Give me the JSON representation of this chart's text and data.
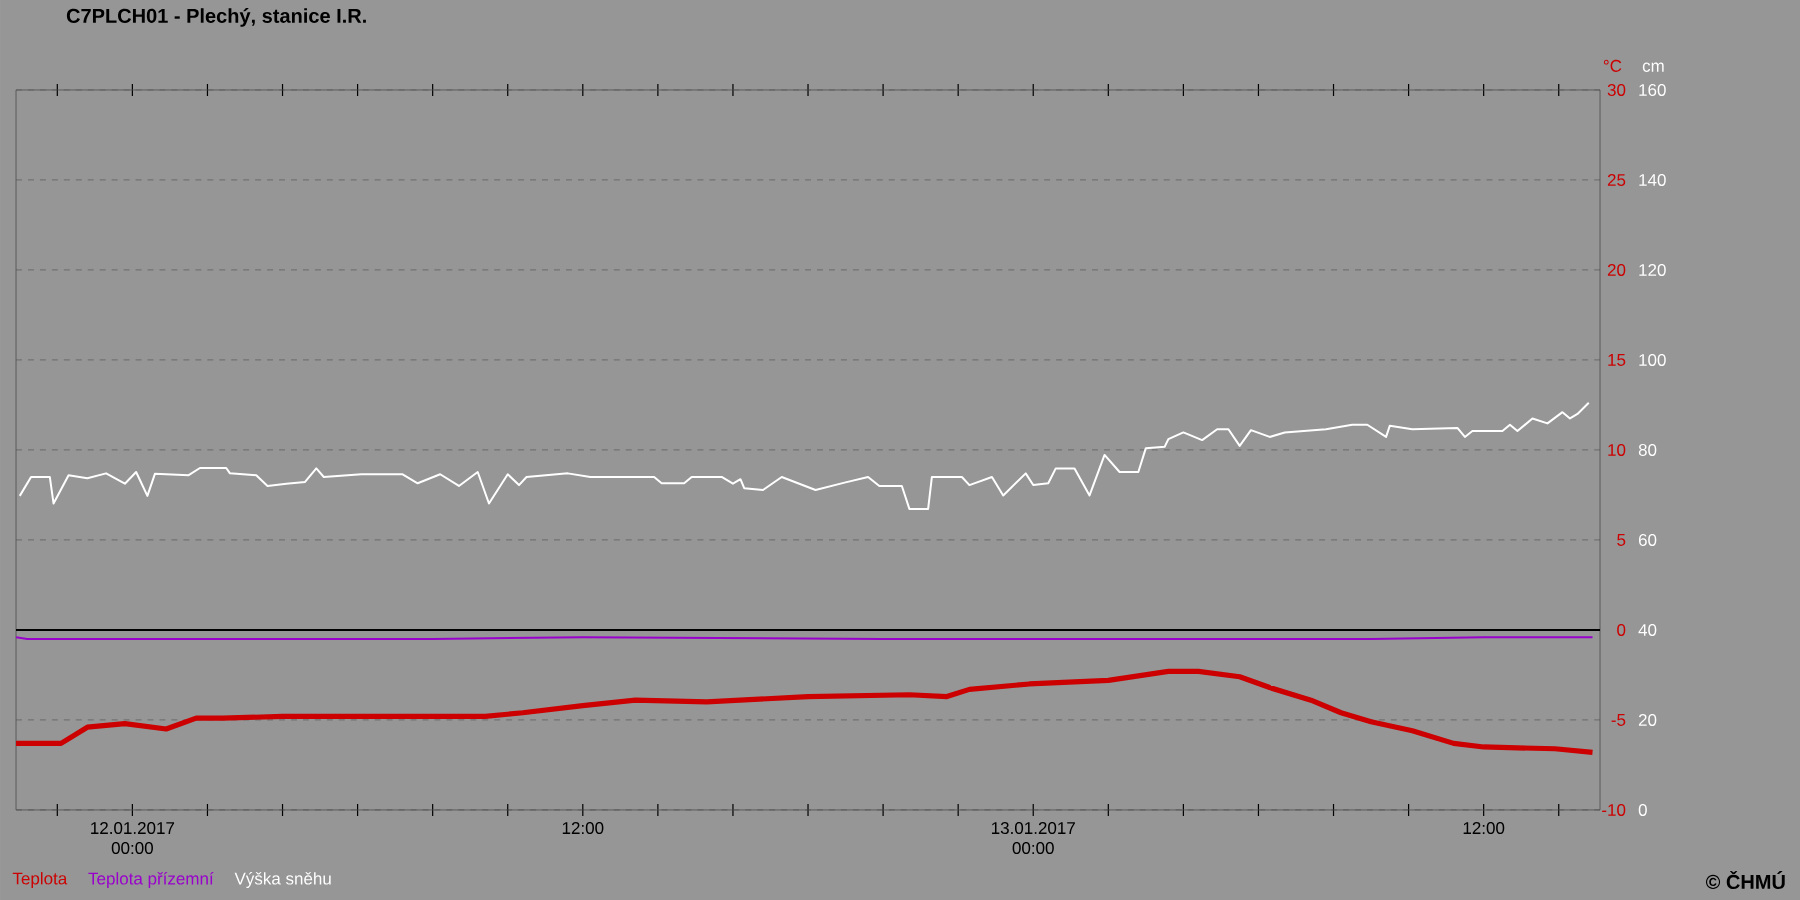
{
  "chart_data": {
    "type": "line",
    "title": "C7PLCH01 - Plechý, stanice I.R.",
    "ylabel": "°C",
    "y2label": "cm",
    "series": [
      {
        "name": "Teplota",
        "color": "#cc0000",
        "x": [
          "2017-01-11T20:54",
          "2017-01-11T22:06",
          "2017-01-11T22:48",
          "2017-01-11T23:48",
          "2017-01-12T00:54",
          "2017-01-12T01:42",
          "2017-01-12T02:24",
          "2017-01-12T04:00",
          "2017-01-12T05:36",
          "2017-01-12T06:42",
          "2017-01-12T08:00",
          "2017-01-12T09:24",
          "2017-01-12T10:24",
          "2017-01-12T12:00",
          "2017-01-12T13:24",
          "2017-01-12T15:18",
          "2017-01-12T18:00",
          "2017-01-12T20:42",
          "2017-01-12T21:42",
          "2017-01-12T22:18",
          "2017-01-12T23:54",
          "2017-01-13T02:00",
          "2017-01-13T03:36",
          "2017-01-13T04:24",
          "2017-01-13T05:30",
          "2017-01-13T06:18",
          "2017-01-13T07:24",
          "2017-01-13T08:12",
          "2017-01-13T09:00",
          "2017-01-13T10:06",
          "2017-01-13T11:12",
          "2017-01-13T12:00",
          "2017-01-13T13:54",
          "2017-01-13T14:54"
        ],
        "values": [
          -6.3,
          -6.3,
          -5.4,
          -5.2,
          -5.5,
          -4.9,
          -4.9,
          -4.8,
          -4.8,
          -4.8,
          -4.8,
          -4.8,
          -4.6,
          -4.2,
          -3.9,
          -4.0,
          -3.7,
          -3.6,
          -3.7,
          -3.3,
          -3.0,
          -2.8,
          -2.3,
          -2.3,
          -2.6,
          -3.2,
          -3.9,
          -4.6,
          -5.1,
          -5.6,
          -6.3,
          -6.5,
          -6.6,
          -6.8
        ]
      },
      {
        "name": "Teplota přízemní",
        "color": "#9900cc",
        "x": [
          "2017-01-11T20:54",
          "2017-01-11T21:12",
          "2017-01-12T08:00",
          "2017-01-12T12:00",
          "2017-01-12T20:00",
          "2017-01-13T09:00",
          "2017-01-13T12:00",
          "2017-01-13T14:54"
        ],
        "values": [
          -0.4,
          -0.5,
          -0.5,
          -0.4,
          -0.5,
          -0.5,
          -0.4,
          -0.4
        ]
      },
      {
        "name": "Výška sněhu",
        "color": "#ffffff",
        "axis": "y2",
        "x": [
          "2017-01-11T21:00",
          "2017-01-11T21:18",
          "2017-01-11T21:48",
          "2017-01-11T21:54",
          "2017-01-11T22:18",
          "2017-01-11T22:48",
          "2017-01-11T23:18",
          "2017-01-11T23:48",
          "2017-01-12T00:06",
          "2017-01-12T00:24",
          "2017-01-12T00:36",
          "2017-01-12T01:30",
          "2017-01-12T01:48",
          "2017-01-12T02:30",
          "2017-01-12T02:36",
          "2017-01-12T03:18",
          "2017-01-12T03:36",
          "2017-01-12T04:06",
          "2017-01-12T04:36",
          "2017-01-12T04:54",
          "2017-01-12T05:06",
          "2017-01-12T06:06",
          "2017-01-12T07:12",
          "2017-01-12T07:36",
          "2017-01-12T08:12",
          "2017-01-12T08:42",
          "2017-01-12T09:12",
          "2017-01-12T09:30",
          "2017-01-12T10:00",
          "2017-01-12T10:18",
          "2017-01-12T10:30",
          "2017-01-12T11:36",
          "2017-01-12T12:12",
          "2017-01-12T13:54",
          "2017-01-12T14:06",
          "2017-01-12T14:42",
          "2017-01-12T14:54",
          "2017-01-12T15:42",
          "2017-01-12T16:00",
          "2017-01-12T16:12",
          "2017-01-12T16:18",
          "2017-01-12T16:48",
          "2017-01-12T17:18",
          "2017-01-12T18:12",
          "2017-01-12T19:00",
          "2017-01-12T19:36",
          "2017-01-12T19:54",
          "2017-01-12T20:30",
          "2017-01-12T20:42",
          "2017-01-12T21:12",
          "2017-01-12T21:18",
          "2017-01-12T22:06",
          "2017-01-12T22:18",
          "2017-01-12T22:54",
          "2017-01-12T23:12",
          "2017-01-12T23:48",
          "2017-01-13T00:00",
          "2017-01-13T00:24",
          "2017-01-13T00:36",
          "2017-01-13T01:06",
          "2017-01-13T01:30",
          "2017-01-13T01:54",
          "2017-01-13T02:18",
          "2017-01-13T02:48",
          "2017-01-13T03:00",
          "2017-01-13T03:30",
          "2017-01-13T03:36",
          "2017-01-13T04:00",
          "2017-01-13T04:30",
          "2017-01-13T04:54",
          "2017-01-13T05:12",
          "2017-01-13T05:30",
          "2017-01-13T05:48",
          "2017-01-13T06:18",
          "2017-01-13T06:42",
          "2017-01-13T07:48",
          "2017-01-13T08:30",
          "2017-01-13T08:54",
          "2017-01-13T09:24",
          "2017-01-13T09:30",
          "2017-01-13T10:06",
          "2017-01-13T11:18",
          "2017-01-13T11:30",
          "2017-01-13T11:42",
          "2017-01-13T12:30",
          "2017-01-13T12:42",
          "2017-01-13T12:54",
          "2017-01-13T13:18",
          "2017-01-13T13:42",
          "2017-01-13T14:06",
          "2017-01-13T14:18",
          "2017-01-13T14:30",
          "2017-01-13T14:48"
        ],
        "values": [
          69.8,
          74.0,
          74.0,
          68.1,
          74.4,
          73.7,
          74.8,
          72.5,
          75.1,
          69.8,
          74.7,
          74.4,
          76.0,
          76.0,
          74.8,
          74.4,
          72.0,
          72.5,
          72.9,
          75.9,
          74.0,
          74.6,
          74.6,
          72.6,
          74.6,
          72.0,
          75.1,
          68.1,
          74.6,
          72.2,
          74.0,
          74.8,
          74.0,
          74.0,
          72.6,
          72.6,
          74.0,
          74.0,
          72.5,
          73.5,
          71.5,
          71.1,
          74.0,
          71.1,
          72.8,
          74.0,
          72.0,
          72.0,
          66.9,
          66.9,
          74.0,
          74.0,
          72.2,
          74.0,
          69.9,
          74.8,
          72.2,
          72.6,
          75.9,
          75.9,
          69.9,
          78.9,
          75.1,
          75.1,
          80.4,
          80.7,
          82.4,
          83.9,
          82.2,
          84.6,
          84.6,
          80.9,
          84.4,
          82.9,
          83.9,
          84.6,
          85.6,
          85.6,
          82.9,
          85.4,
          84.6,
          84.9,
          82.9,
          84.2,
          84.2,
          85.6,
          84.2,
          87.0,
          85.9,
          88.4,
          87.0,
          88.0,
          90.5
        ]
      }
    ],
    "xlim": [
      "2017-01-11T20:54",
      "2017-01-13T15:06"
    ],
    "xticks": [
      {
        "value": "2017-01-11T22:00",
        "label": null
      },
      {
        "value": "2017-01-12T00:00",
        "label": "12.01.2017 00:00"
      },
      {
        "value": "2017-01-12T02:00",
        "label": null
      },
      {
        "value": "2017-01-12T04:00",
        "label": null
      },
      {
        "value": "2017-01-12T06:00",
        "label": null
      },
      {
        "value": "2017-01-12T08:00",
        "label": null
      },
      {
        "value": "2017-01-12T10:00",
        "label": null
      },
      {
        "value": "2017-01-12T12:00",
        "label": "12:00"
      },
      {
        "value": "2017-01-12T14:00",
        "label": null
      },
      {
        "value": "2017-01-12T16:00",
        "label": null
      },
      {
        "value": "2017-01-12T18:00",
        "label": null
      },
      {
        "value": "2017-01-12T20:00",
        "label": null
      },
      {
        "value": "2017-01-12T22:00",
        "label": null
      },
      {
        "value": "2017-01-13T00:00",
        "label": "13.01.2017 00:00"
      },
      {
        "value": "2017-01-13T02:00",
        "label": null
      },
      {
        "value": "2017-01-13T04:00",
        "label": null
      },
      {
        "value": "2017-01-13T06:00",
        "label": null
      },
      {
        "value": "2017-01-13T08:00",
        "label": null
      },
      {
        "value": "2017-01-13T10:00",
        "label": null
      },
      {
        "value": "2017-01-13T12:00",
        "label": "12:00"
      },
      {
        "value": "2017-01-13T14:00",
        "label": null
      }
    ],
    "ylim": [
      -10,
      30
    ],
    "yticks": [
      -10,
      -5,
      0,
      5,
      10,
      15,
      20,
      25,
      30
    ],
    "y2lim": [
      0,
      160
    ],
    "y2ticks": [
      0,
      20,
      40,
      60,
      80,
      100,
      120,
      140,
      160
    ],
    "ref_lines": [
      {
        "axis": "y",
        "value": 0,
        "color": "#000000"
      }
    ],
    "grid": "y",
    "legend": "bottom left",
    "marker": "none",
    "line_style": "solid",
    "annotations": [
      "© ČHMÚ"
    ]
  }
}
